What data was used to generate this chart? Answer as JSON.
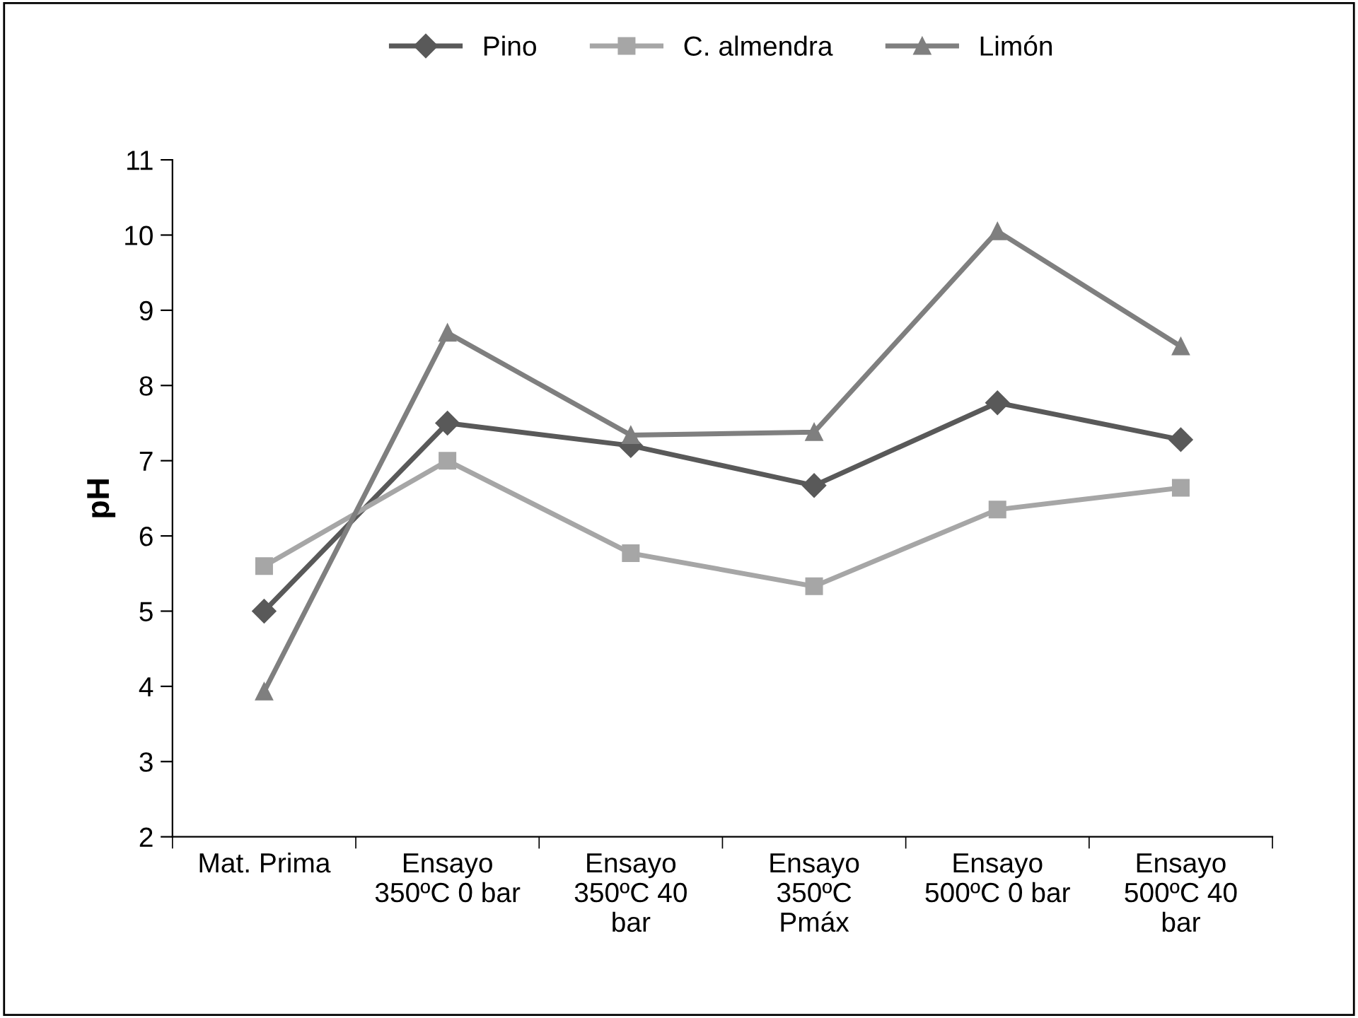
{
  "chart_data": {
    "type": "line",
    "ylabel": "pH",
    "categories": [
      "Mat. Prima",
      "Ensayo\n350ºC 0 bar",
      "Ensayo\n350ºC 40\nbar",
      "Ensayo\n350ºC\nPmáx",
      "Ensayo\n500ºC 0 bar",
      "Ensayo\n500ºC 40\nbar"
    ],
    "series": [
      {
        "name": "Pino",
        "color": "#595959",
        "marker": "diamond",
        "values": [
          5.0,
          7.5,
          7.2,
          6.67,
          7.77,
          7.28
        ]
      },
      {
        "name": "C. almendra",
        "color": "#a6a6a6",
        "marker": "square",
        "values": [
          5.6,
          7.0,
          5.77,
          5.33,
          6.35,
          6.64
        ]
      },
      {
        "name": "Limón",
        "color": "#7f7f7f",
        "marker": "triangle",
        "values": [
          3.93,
          8.7,
          7.34,
          7.38,
          10.05,
          8.52
        ]
      }
    ],
    "ylim": [
      2,
      11
    ],
    "yticks": [
      2,
      3,
      4,
      5,
      6,
      7,
      8,
      9,
      10,
      11
    ],
    "grid": false,
    "legend": "top",
    "line_style": "solid"
  }
}
